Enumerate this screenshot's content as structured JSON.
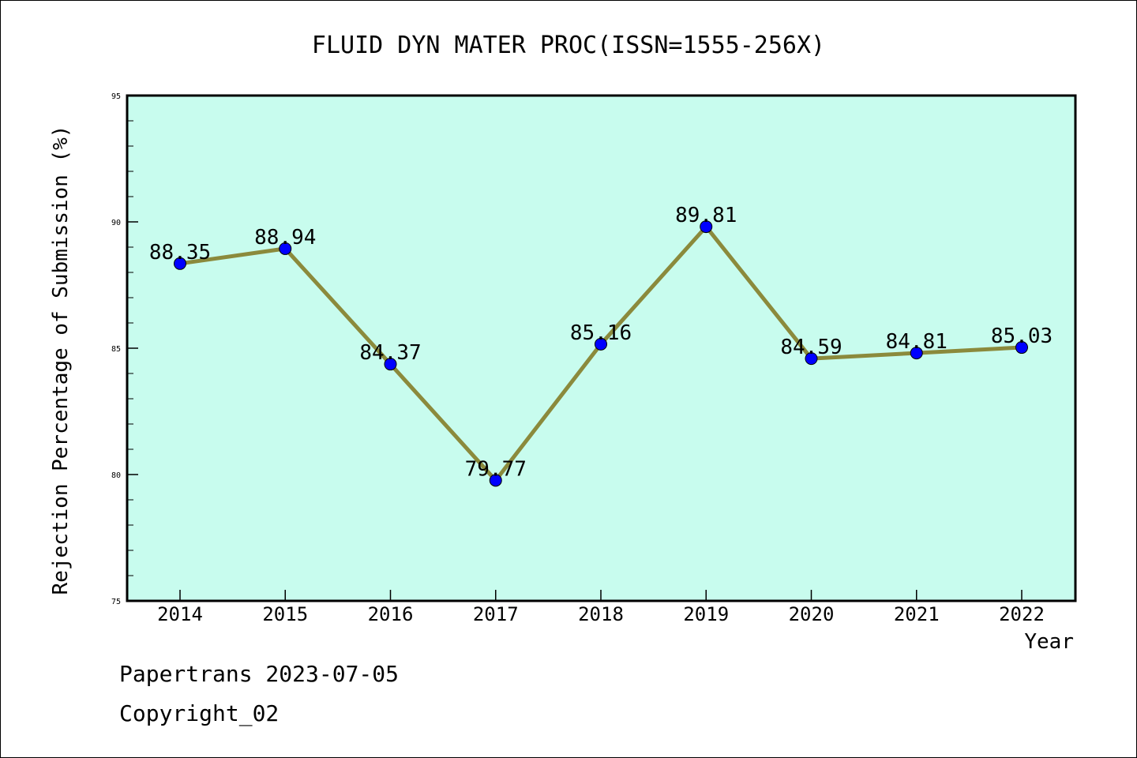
{
  "chart_data": {
    "type": "line",
    "title": "FLUID DYN MATER PROC(ISSN=1555-256X)",
    "xlabel": "Year",
    "ylabel": "Rejection Percentage of Submission (%)",
    "categories": [
      "2014",
      "2015",
      "2016",
      "2017",
      "2018",
      "2019",
      "2020",
      "2021",
      "2022"
    ],
    "values": [
      88.35,
      88.94,
      84.37,
      79.77,
      85.16,
      89.81,
      84.59,
      84.81,
      85.03
    ],
    "data_labels": [
      "88.35",
      "88.94",
      "84.37",
      "79.77",
      "85.16",
      "89.81",
      "84.59",
      "84.81",
      "85.03"
    ],
    "ylim": [
      75,
      95
    ],
    "y_ticks": [
      "75",
      "80",
      "85",
      "90",
      "95"
    ],
    "grid": false,
    "colors": {
      "plot_background": "#c8fcee",
      "line": "#8b8a3c",
      "marker": "#0000ff"
    }
  },
  "footer": {
    "line1": "Papertrans 2023-07-05",
    "line2": "Copyright_02"
  }
}
